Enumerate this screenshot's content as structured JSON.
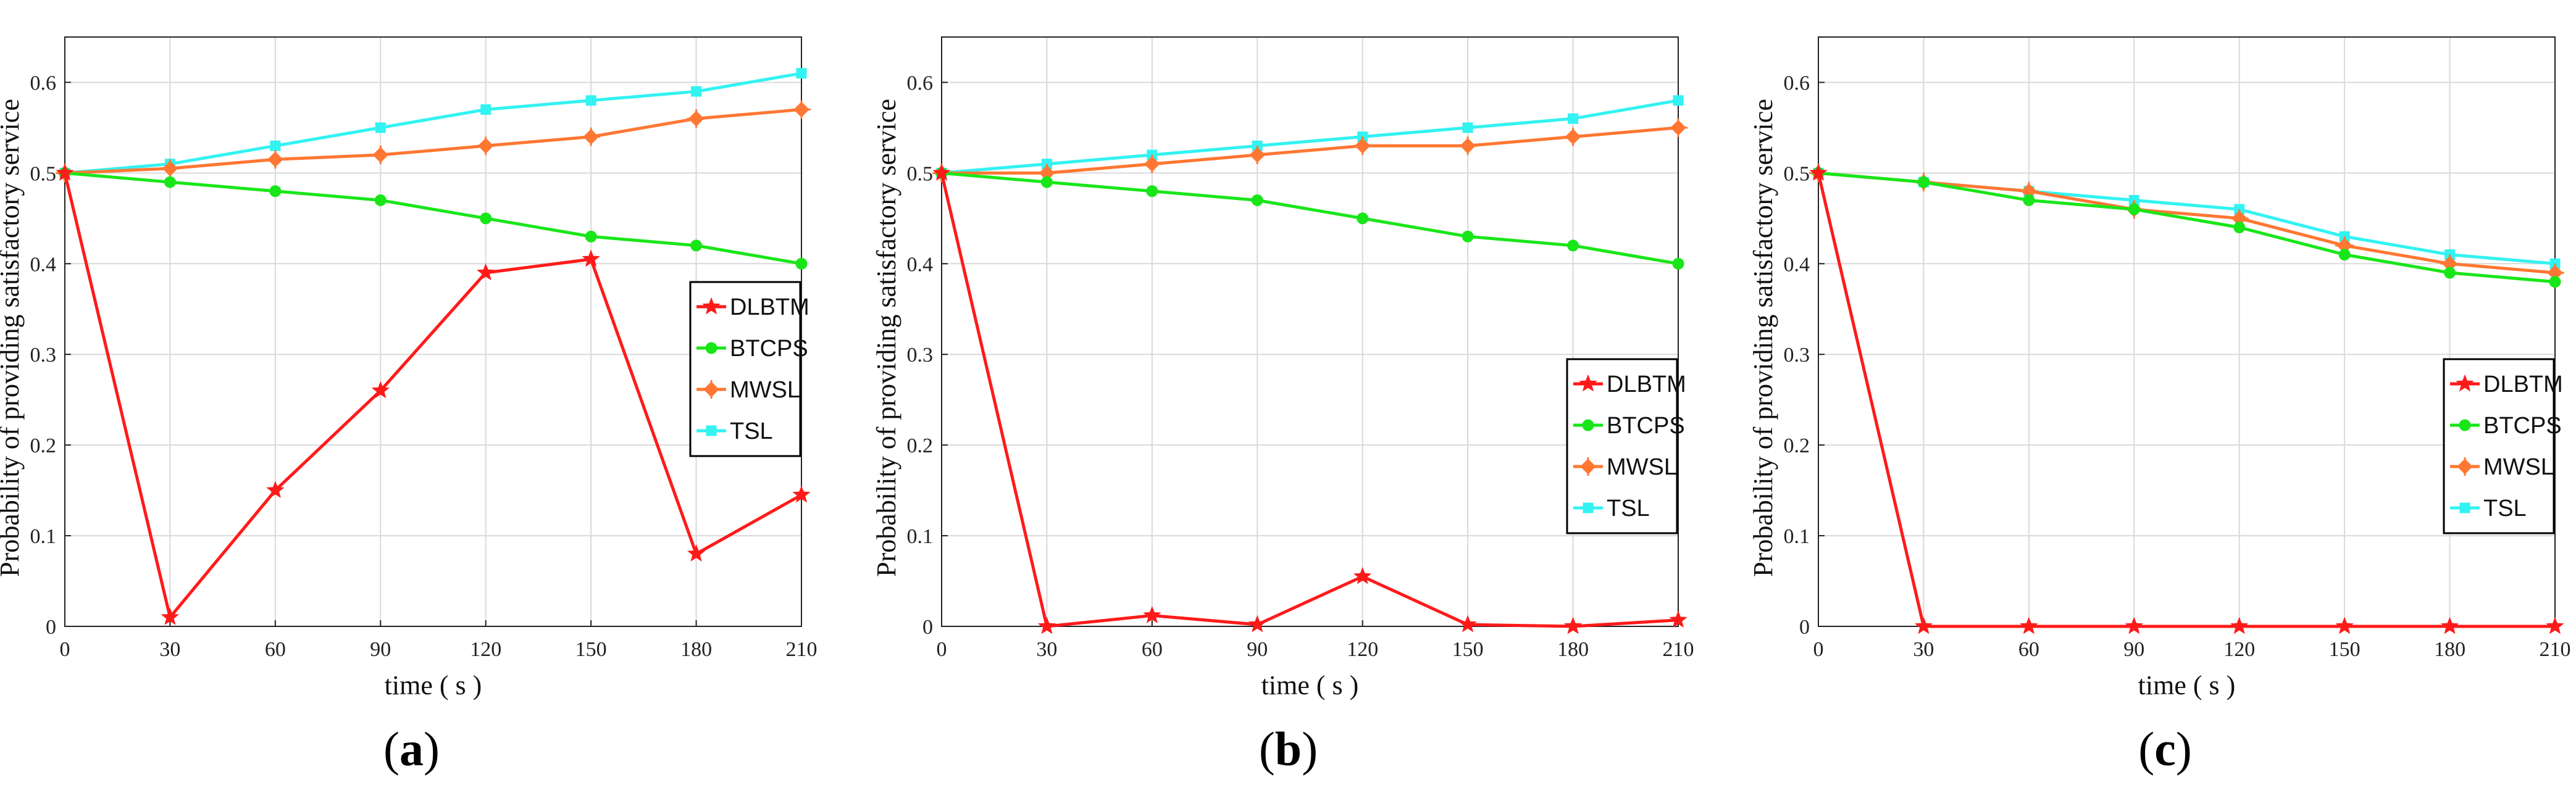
{
  "colors": {
    "DLBTM": "#ff1a1a",
    "BTCPS": "#19e619",
    "MWSL": "#ff7733",
    "TSL": "#33f2f2",
    "grid": "#d9d9d9",
    "axis": "#222222"
  },
  "chart_data": [
    {
      "type": "line",
      "panel_label": "(a)",
      "panel_letter": "a",
      "xlabel": "time ( s )",
      "ylabel": "Probability of providing satisfactory service",
      "x": [
        0,
        30,
        60,
        90,
        120,
        150,
        180,
        210
      ],
      "xticks": [
        "0",
        "30",
        "60",
        "90",
        "120",
        "150",
        "180",
        "210"
      ],
      "xlim": [
        0,
        210
      ],
      "ylim": [
        0,
        0.65
      ],
      "yticks": [
        "0",
        "0.1",
        "0.2",
        "0.3",
        "0.4",
        "0.5",
        "0.6"
      ],
      "grid": true,
      "legend_position": "middle-right",
      "series": [
        {
          "name": "DLBTM",
          "marker": "star",
          "values": [
            0.5,
            0.01,
            0.15,
            0.26,
            0.39,
            0.405,
            0.08,
            0.145
          ]
        },
        {
          "name": "BTCPS",
          "marker": "circle",
          "values": [
            0.5,
            0.49,
            0.48,
            0.47,
            0.45,
            0.43,
            0.42,
            0.4
          ]
        },
        {
          "name": "MWSL",
          "marker": "plus-diamond",
          "values": [
            0.5,
            0.505,
            0.515,
            0.52,
            0.53,
            0.54,
            0.56,
            0.57
          ]
        },
        {
          "name": "TSL",
          "marker": "square",
          "values": [
            0.5,
            0.51,
            0.53,
            0.55,
            0.57,
            0.58,
            0.59,
            0.61
          ]
        }
      ]
    },
    {
      "type": "line",
      "panel_label": "(b)",
      "panel_letter": "b",
      "xlabel": "time ( s )",
      "ylabel": "Probability of providing satisfactory service",
      "x": [
        0,
        30,
        60,
        90,
        120,
        150,
        180,
        210
      ],
      "xticks": [
        "0",
        "30",
        "60",
        "90",
        "120",
        "150",
        "180",
        "210"
      ],
      "xlim": [
        0,
        210
      ],
      "ylim": [
        0,
        0.65
      ],
      "yticks": [
        "0",
        "0.1",
        "0.2",
        "0.3",
        "0.4",
        "0.5",
        "0.6"
      ],
      "grid": true,
      "legend_position": "lower-right",
      "series": [
        {
          "name": "DLBTM",
          "marker": "star",
          "values": [
            0.5,
            0.0,
            0.012,
            0.002,
            0.055,
            0.002,
            0.0,
            0.007
          ]
        },
        {
          "name": "BTCPS",
          "marker": "circle",
          "values": [
            0.5,
            0.49,
            0.48,
            0.47,
            0.45,
            0.43,
            0.42,
            0.4
          ]
        },
        {
          "name": "MWSL",
          "marker": "plus-diamond",
          "values": [
            0.5,
            0.5,
            0.51,
            0.52,
            0.53,
            0.53,
            0.54,
            0.55
          ]
        },
        {
          "name": "TSL",
          "marker": "square",
          "values": [
            0.5,
            0.51,
            0.52,
            0.53,
            0.54,
            0.55,
            0.56,
            0.58
          ]
        }
      ]
    },
    {
      "type": "line",
      "panel_label": "(c)",
      "panel_letter": "c",
      "xlabel": "time ( s )",
      "ylabel": "Probability of providing satisfactory service",
      "x": [
        0,
        30,
        60,
        90,
        120,
        150,
        180,
        210
      ],
      "xticks": [
        "0",
        "30",
        "60",
        "90",
        "120",
        "150",
        "180",
        "210"
      ],
      "xlim": [
        0,
        210
      ],
      "ylim": [
        0,
        0.65
      ],
      "yticks": [
        "0",
        "0.1",
        "0.2",
        "0.3",
        "0.4",
        "0.5",
        "0.6"
      ],
      "grid": true,
      "legend_position": "lower-right",
      "series": [
        {
          "name": "DLBTM",
          "marker": "star",
          "values": [
            0.5,
            0.0,
            0.0,
            0.0,
            0.0,
            0.0,
            0.0,
            0.0
          ]
        },
        {
          "name": "BTCPS",
          "marker": "circle",
          "values": [
            0.5,
            0.49,
            0.47,
            0.46,
            0.44,
            0.41,
            0.39,
            0.38
          ]
        },
        {
          "name": "MWSL",
          "marker": "plus-diamond",
          "values": [
            0.5,
            0.49,
            0.48,
            0.46,
            0.45,
            0.42,
            0.4,
            0.39
          ]
        },
        {
          "name": "TSL",
          "marker": "square",
          "values": [
            0.5,
            0.49,
            0.48,
            0.47,
            0.46,
            0.43,
            0.41,
            0.4
          ]
        }
      ]
    }
  ]
}
